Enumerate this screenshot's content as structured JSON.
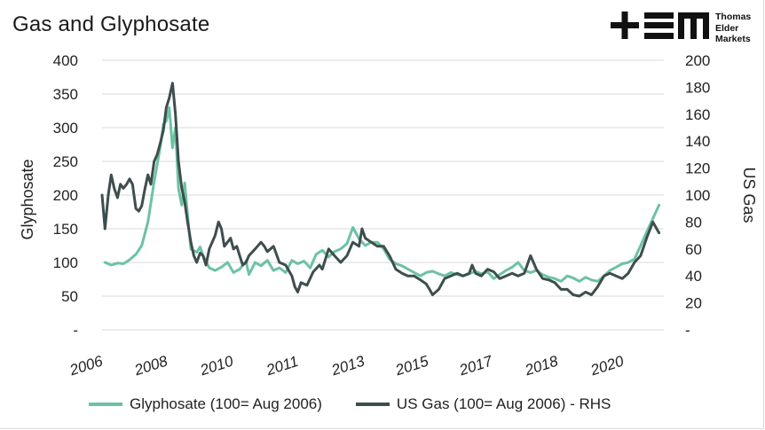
{
  "title": "Gas and Glyphosate",
  "brand": {
    "logo": "tem-logo",
    "lines": [
      "Thomas",
      "Elder",
      "Markets"
    ]
  },
  "colors": {
    "glyphosate": "#6cc2a4",
    "gas": "#3e4d4d",
    "grid": "#d9d9d9"
  },
  "chart_data": {
    "type": "line",
    "title": "Gas and Glyphosate",
    "xlabel": "",
    "ylabel": "Glyphosate",
    "y2label": "US Gas",
    "x_tick_labels": [
      "2006",
      "2008",
      "2010",
      "2011",
      "2013",
      "2015",
      "2017",
      "2018",
      "2020"
    ],
    "x_range": [
      2006.5,
      2021.8
    ],
    "y_ticks_left": [
      "400",
      "350",
      "300",
      "250",
      "200",
      "150",
      "100",
      "50",
      "-"
    ],
    "y_ticks_right": [
      "200",
      "180",
      "160",
      "140",
      "120",
      "100",
      "80",
      "60",
      "40",
      "20",
      "-"
    ],
    "ylim_left": [
      0,
      400
    ],
    "ylim_right": [
      0,
      200
    ],
    "grid": true,
    "legend_position": "bottom",
    "series": [
      {
        "name": "Glyphosate (100= Aug 2006)",
        "axis": "left",
        "color": "#6cc2a4",
        "points": [
          [
            2006.58,
            100
          ],
          [
            2006.75,
            96
          ],
          [
            2006.92,
            99
          ],
          [
            2007.08,
            98
          ],
          [
            2007.25,
            104
          ],
          [
            2007.42,
            112
          ],
          [
            2007.58,
            125
          ],
          [
            2007.75,
            160
          ],
          [
            2007.92,
            220
          ],
          [
            2008.08,
            270
          ],
          [
            2008.17,
            305
          ],
          [
            2008.25,
            310
          ],
          [
            2008.33,
            330
          ],
          [
            2008.42,
            270
          ],
          [
            2008.5,
            300
          ],
          [
            2008.58,
            210
          ],
          [
            2008.67,
            185
          ],
          [
            2008.75,
            218
          ],
          [
            2008.83,
            170
          ],
          [
            2008.92,
            120
          ],
          [
            2009.08,
            115
          ],
          [
            2009.17,
            123
          ],
          [
            2009.25,
            110
          ],
          [
            2009.42,
            92
          ],
          [
            2009.58,
            88
          ],
          [
            2009.75,
            93
          ],
          [
            2009.92,
            100
          ],
          [
            2010.08,
            85
          ],
          [
            2010.25,
            90
          ],
          [
            2010.42,
            102
          ],
          [
            2010.5,
            82
          ],
          [
            2010.67,
            100
          ],
          [
            2010.83,
            95
          ],
          [
            2011.0,
            103
          ],
          [
            2011.17,
            88
          ],
          [
            2011.33,
            92
          ],
          [
            2011.5,
            85
          ],
          [
            2011.67,
            103
          ],
          [
            2011.83,
            98
          ],
          [
            2012.0,
            102
          ],
          [
            2012.17,
            92
          ],
          [
            2012.33,
            112
          ],
          [
            2012.5,
            118
          ],
          [
            2012.67,
            108
          ],
          [
            2012.83,
            116
          ],
          [
            2013.0,
            120
          ],
          [
            2013.17,
            128
          ],
          [
            2013.33,
            152
          ],
          [
            2013.5,
            135
          ],
          [
            2013.67,
            125
          ],
          [
            2013.83,
            130
          ],
          [
            2014.0,
            130
          ],
          [
            2014.17,
            120
          ],
          [
            2014.33,
            105
          ],
          [
            2014.5,
            98
          ],
          [
            2014.67,
            95
          ],
          [
            2014.83,
            90
          ],
          [
            2015.0,
            85
          ],
          [
            2015.17,
            80
          ],
          [
            2015.33,
            85
          ],
          [
            2015.5,
            87
          ],
          [
            2015.67,
            83
          ],
          [
            2015.83,
            80
          ],
          [
            2016.0,
            85
          ],
          [
            2016.17,
            82
          ],
          [
            2016.33,
            80
          ],
          [
            2016.5,
            83
          ],
          [
            2016.67,
            87
          ],
          [
            2016.83,
            83
          ],
          [
            2017.0,
            86
          ],
          [
            2017.17,
            76
          ],
          [
            2017.33,
            82
          ],
          [
            2017.5,
            88
          ],
          [
            2017.67,
            93
          ],
          [
            2017.83,
            100
          ],
          [
            2018.0,
            88
          ],
          [
            2018.17,
            85
          ],
          [
            2018.33,
            88
          ],
          [
            2018.5,
            82
          ],
          [
            2018.67,
            78
          ],
          [
            2018.83,
            76
          ],
          [
            2019.0,
            72
          ],
          [
            2019.17,
            80
          ],
          [
            2019.33,
            77
          ],
          [
            2019.5,
            72
          ],
          [
            2019.67,
            78
          ],
          [
            2019.83,
            74
          ],
          [
            2020.0,
            72
          ],
          [
            2020.17,
            80
          ],
          [
            2020.33,
            88
          ],
          [
            2020.5,
            93
          ],
          [
            2020.67,
            98
          ],
          [
            2020.83,
            100
          ],
          [
            2021.0,
            105
          ],
          [
            2021.17,
            125
          ],
          [
            2021.33,
            145
          ],
          [
            2021.5,
            165
          ],
          [
            2021.67,
            185
          ]
        ]
      },
      {
        "name": "US Gas (100= Aug 2006) - RHS",
        "axis": "right",
        "color": "#3e4d4d",
        "points": [
          [
            2006.5,
            100
          ],
          [
            2006.58,
            75
          ],
          [
            2006.67,
            100
          ],
          [
            2006.75,
            115
          ],
          [
            2006.83,
            105
          ],
          [
            2006.92,
            98
          ],
          [
            2007.0,
            108
          ],
          [
            2007.08,
            105
          ],
          [
            2007.17,
            108
          ],
          [
            2007.25,
            112
          ],
          [
            2007.33,
            108
          ],
          [
            2007.42,
            90
          ],
          [
            2007.5,
            88
          ],
          [
            2007.58,
            92
          ],
          [
            2007.67,
            105
          ],
          [
            2007.75,
            115
          ],
          [
            2007.83,
            108
          ],
          [
            2007.92,
            125
          ],
          [
            2008.0,
            130
          ],
          [
            2008.08,
            138
          ],
          [
            2008.17,
            148
          ],
          [
            2008.25,
            165
          ],
          [
            2008.33,
            172
          ],
          [
            2008.42,
            183
          ],
          [
            2008.5,
            160
          ],
          [
            2008.58,
            125
          ],
          [
            2008.67,
            105
          ],
          [
            2008.75,
            95
          ],
          [
            2008.83,
            80
          ],
          [
            2008.92,
            65
          ],
          [
            2009.0,
            55
          ],
          [
            2009.08,
            50
          ],
          [
            2009.17,
            57
          ],
          [
            2009.25,
            55
          ],
          [
            2009.33,
            48
          ],
          [
            2009.42,
            60
          ],
          [
            2009.5,
            65
          ],
          [
            2009.58,
            70
          ],
          [
            2009.67,
            80
          ],
          [
            2009.75,
            75
          ],
          [
            2009.83,
            62
          ],
          [
            2010.0,
            68
          ],
          [
            2010.08,
            60
          ],
          [
            2010.17,
            62
          ],
          [
            2010.25,
            55
          ],
          [
            2010.33,
            48
          ],
          [
            2010.42,
            50
          ],
          [
            2010.5,
            55
          ],
          [
            2010.67,
            60
          ],
          [
            2010.83,
            65
          ],
          [
            2010.92,
            62
          ],
          [
            2011.0,
            58
          ],
          [
            2011.17,
            62
          ],
          [
            2011.33,
            50
          ],
          [
            2011.5,
            48
          ],
          [
            2011.67,
            40
          ],
          [
            2011.75,
            32
          ],
          [
            2011.83,
            28
          ],
          [
            2011.92,
            35
          ],
          [
            2012.08,
            33
          ],
          [
            2012.25,
            43
          ],
          [
            2012.42,
            48
          ],
          [
            2012.5,
            45
          ],
          [
            2012.67,
            60
          ],
          [
            2012.83,
            55
          ],
          [
            2013.0,
            50
          ],
          [
            2013.17,
            55
          ],
          [
            2013.33,
            65
          ],
          [
            2013.5,
            62
          ],
          [
            2013.58,
            75
          ],
          [
            2013.67,
            68
          ],
          [
            2013.83,
            65
          ],
          [
            2014.0,
            62
          ],
          [
            2014.17,
            62
          ],
          [
            2014.33,
            55
          ],
          [
            2014.5,
            45
          ],
          [
            2014.67,
            42
          ],
          [
            2014.83,
            40
          ],
          [
            2015.0,
            40
          ],
          [
            2015.17,
            37
          ],
          [
            2015.33,
            34
          ],
          [
            2015.42,
            30
          ],
          [
            2015.5,
            26
          ],
          [
            2015.67,
            30
          ],
          [
            2015.83,
            38
          ],
          [
            2016.0,
            40
          ],
          [
            2016.17,
            42
          ],
          [
            2016.33,
            40
          ],
          [
            2016.5,
            42
          ],
          [
            2016.58,
            48
          ],
          [
            2016.67,
            42
          ],
          [
            2016.83,
            40
          ],
          [
            2017.0,
            45
          ],
          [
            2017.17,
            43
          ],
          [
            2017.33,
            38
          ],
          [
            2017.5,
            40
          ],
          [
            2017.67,
            42
          ],
          [
            2017.83,
            40
          ],
          [
            2018.0,
            42
          ],
          [
            2018.17,
            55
          ],
          [
            2018.33,
            45
          ],
          [
            2018.5,
            38
          ],
          [
            2018.67,
            37
          ],
          [
            2018.83,
            35
          ],
          [
            2019.0,
            30
          ],
          [
            2019.17,
            30
          ],
          [
            2019.33,
            26
          ],
          [
            2019.5,
            25
          ],
          [
            2019.67,
            28
          ],
          [
            2019.83,
            26
          ],
          [
            2020.0,
            32
          ],
          [
            2020.17,
            40
          ],
          [
            2020.33,
            42
          ],
          [
            2020.5,
            40
          ],
          [
            2020.67,
            38
          ],
          [
            2020.83,
            42
          ],
          [
            2021.0,
            50
          ],
          [
            2021.17,
            55
          ],
          [
            2021.33,
            68
          ],
          [
            2021.5,
            80
          ],
          [
            2021.67,
            72
          ]
        ]
      }
    ]
  }
}
